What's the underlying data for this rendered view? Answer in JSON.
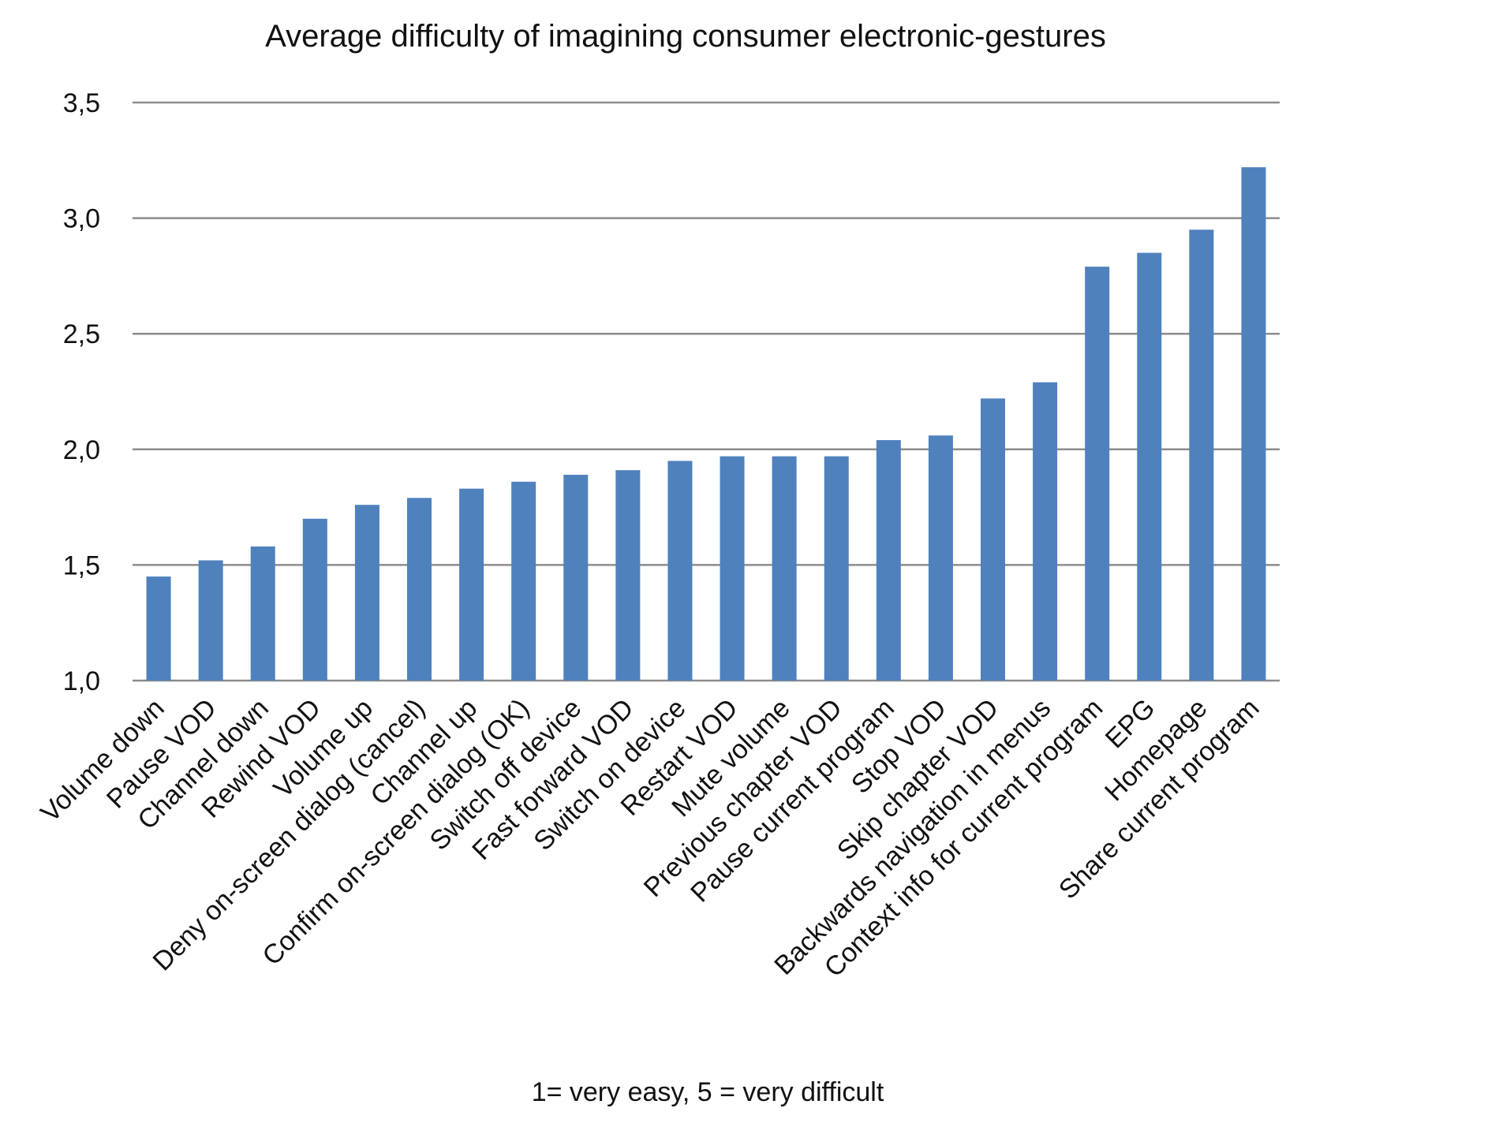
{
  "chart_data": {
    "type": "bar",
    "title": "Average difficulty of imagining consumer electronic-gestures",
    "xlabel": "1= very easy, 5 = very difficult",
    "ylabel": "",
    "ylim": [
      1.0,
      3.5
    ],
    "yticks": [
      1.0,
      1.5,
      2.0,
      2.5,
      3.0,
      3.5
    ],
    "ytick_labels": [
      "1,0",
      "1,5",
      "2,0",
      "2,5",
      "3,0",
      "3,5"
    ],
    "grid": true,
    "bar_color": "#4f81bd",
    "grid_color": "#8c8c8c",
    "categories": [
      "Volume down",
      "Pause VOD",
      "Channel down",
      "Rewind VOD",
      "Volume up",
      "Deny on-screen dialog (cancel)",
      "Channel up",
      "Confirm on-screen dialog (OK)",
      "Switch off device",
      "Fast forward VOD",
      "Switch on device",
      "Restart VOD",
      "Mute volume",
      "Previous chapter VOD",
      "Pause current program",
      "Stop VOD",
      "Skip chapter VOD",
      "Backwards navigation in menus",
      "Context info for current program",
      "EPG",
      "Homepage",
      "Share current program"
    ],
    "values": [
      1.45,
      1.52,
      1.58,
      1.7,
      1.76,
      1.79,
      1.83,
      1.86,
      1.89,
      1.91,
      1.95,
      1.97,
      1.97,
      1.97,
      2.04,
      2.06,
      2.22,
      2.29,
      2.79,
      2.85,
      2.95,
      3.22
    ]
  }
}
